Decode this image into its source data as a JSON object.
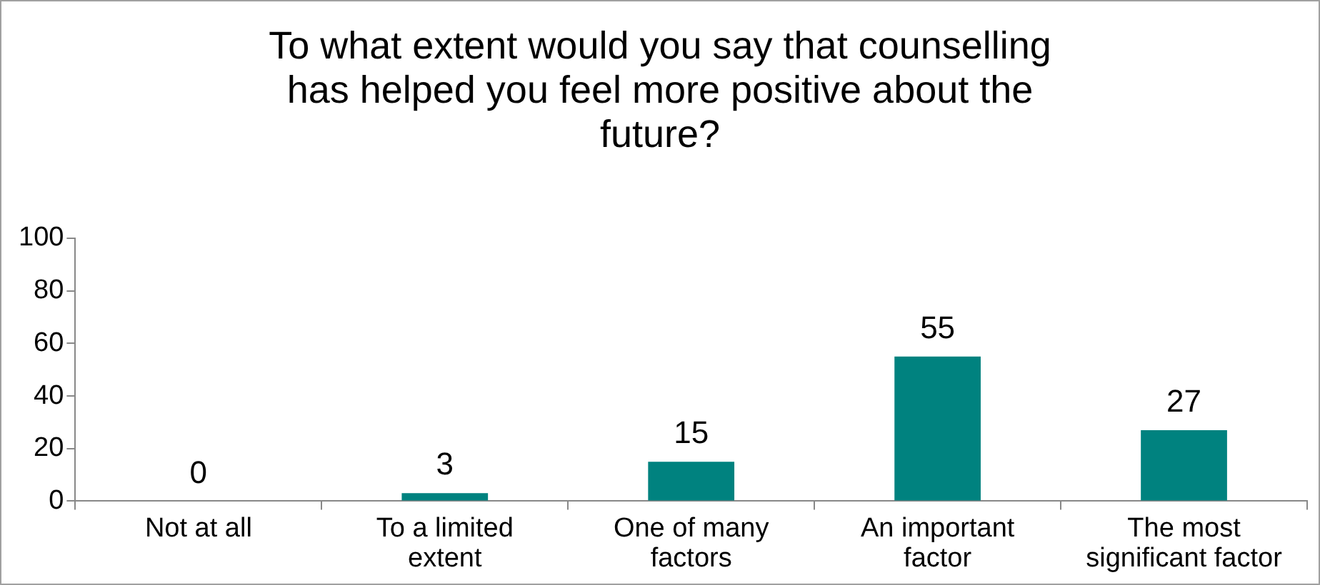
{
  "chart_data": {
    "type": "bar",
    "title": "To what extent would you say that counselling has helped you feel more positive about the future?",
    "categories": [
      "Not at all",
      "To a limited extent",
      "One of many factors",
      "An important factor",
      "The most significant factor"
    ],
    "values": [
      0,
      3,
      15,
      55,
      27
    ],
    "color": "#00827f",
    "ylim": [
      0,
      100
    ],
    "yticks": [
      0,
      20,
      40,
      60,
      80,
      100
    ],
    "grid": false,
    "legend": false,
    "data_labels": true
  }
}
